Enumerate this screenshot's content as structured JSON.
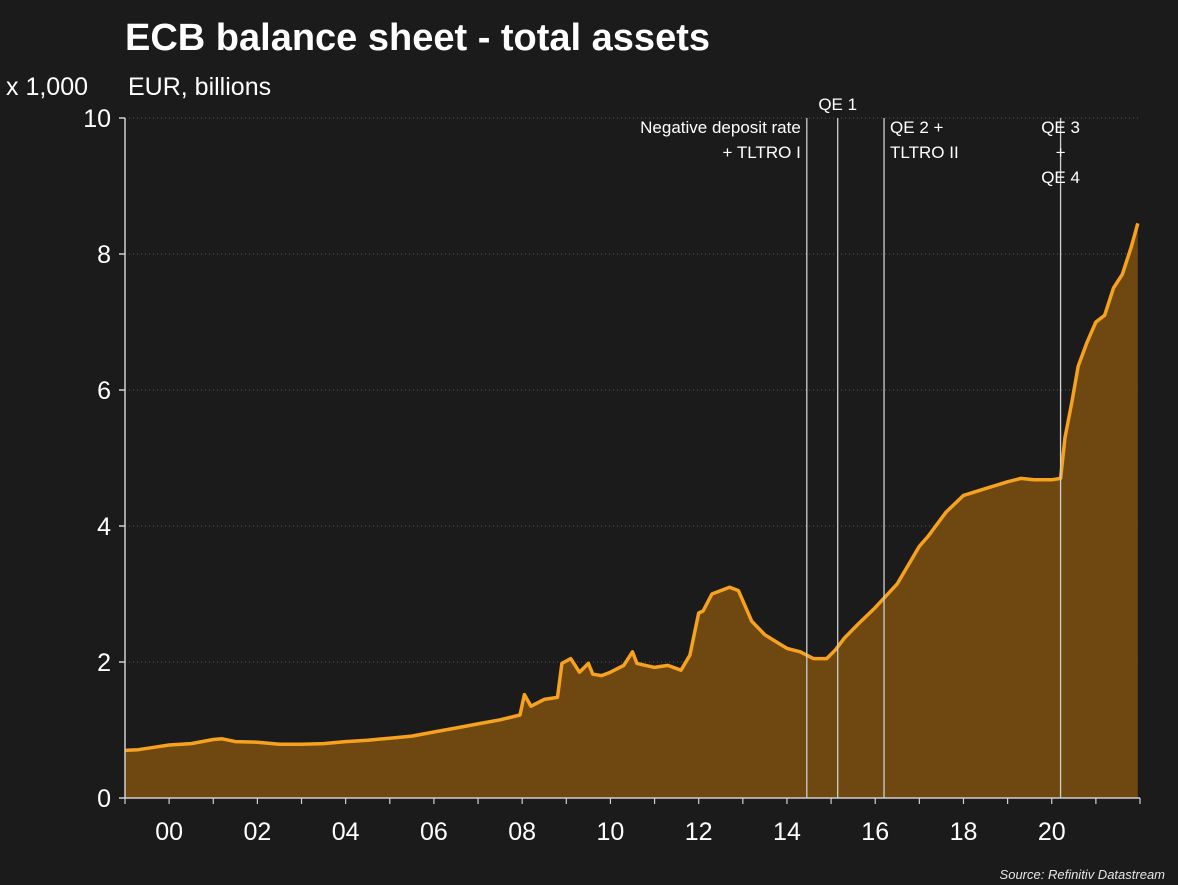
{
  "chart_data": {
    "type": "area",
    "title": "ECB balance sheet - total assets",
    "ylabel_multiplier": "x 1,000",
    "ylabel_units": "EUR, billions",
    "source": "Source: Refinitiv Datastream",
    "xlim": [
      1999.0,
      2022.0
    ],
    "ylim": [
      0,
      10
    ],
    "y_ticks": [
      0,
      2,
      4,
      6,
      8,
      10
    ],
    "y_tick_labels": [
      "0",
      "2",
      "4",
      "6",
      "8",
      "10"
    ],
    "x_ticks": [
      2000,
      2002,
      2004,
      2006,
      2008,
      2010,
      2012,
      2014,
      2016,
      2018,
      2020
    ],
    "x_tick_labels": [
      "00",
      "02",
      "04",
      "06",
      "08",
      "10",
      "12",
      "14",
      "16",
      "18",
      "20"
    ],
    "grid": "horizontal dotted",
    "colors": {
      "line": "#f6a21e",
      "fill": "#6f4710",
      "background": "#1b1b1b",
      "annotation_line": "#cfcfcf"
    },
    "series": [
      {
        "x": [
          1999.0,
          1999.3,
          1999.6,
          2000.0,
          2000.5,
          2001.0,
          2001.2,
          2001.5,
          2002.0,
          2002.5,
          2003.0,
          2003.5,
          2004.0,
          2004.5,
          2005.0,
          2005.5,
          2006.0,
          2006.5,
          2007.0,
          2007.5,
          2007.95,
          2008.05,
          2008.2,
          2008.5,
          2008.8,
          2008.9,
          2009.1,
          2009.3,
          2009.5,
          2009.6,
          2009.8,
          2010.0,
          2010.3,
          2010.5,
          2010.6,
          2010.8,
          2011.0,
          2011.3,
          2011.6,
          2011.8,
          2012.0,
          2012.1,
          2012.3,
          2012.5,
          2012.7,
          2012.9,
          2013.2,
          2013.5,
          2013.8,
          2014.0,
          2014.3,
          2014.6,
          2014.9,
          2015.1,
          2015.3,
          2015.6,
          2016.0,
          2016.5,
          2017.0,
          2017.2,
          2017.6,
          2018.0,
          2018.5,
          2019.0,
          2019.3,
          2019.6,
          2019.8,
          2020.0,
          2020.2,
          2020.3,
          2020.45,
          2020.6,
          2020.8,
          2021.0,
          2021.2,
          2021.4,
          2021.6,
          2021.8,
          2021.95
        ],
        "values": [
          0.7,
          0.71,
          0.74,
          0.78,
          0.8,
          0.86,
          0.87,
          0.83,
          0.82,
          0.79,
          0.79,
          0.8,
          0.83,
          0.85,
          0.88,
          0.91,
          0.97,
          1.03,
          1.09,
          1.15,
          1.22,
          1.52,
          1.35,
          1.45,
          1.48,
          1.98,
          2.05,
          1.85,
          1.98,
          1.82,
          1.8,
          1.85,
          1.95,
          2.15,
          1.98,
          1.95,
          1.92,
          1.95,
          1.88,
          2.1,
          2.72,
          2.75,
          3.0,
          3.05,
          3.1,
          3.05,
          2.6,
          2.4,
          2.28,
          2.2,
          2.15,
          2.05,
          2.05,
          2.18,
          2.35,
          2.55,
          2.8,
          3.15,
          3.7,
          3.85,
          4.2,
          4.45,
          4.55,
          4.65,
          4.7,
          4.68,
          4.68,
          4.68,
          4.7,
          5.3,
          5.8,
          6.35,
          6.7,
          7.0,
          7.1,
          7.5,
          7.7,
          8.1,
          8.45
        ]
      }
    ],
    "annotations": [
      {
        "x": 2014.45,
        "lines": [
          "Negative deposit rate",
          "+ TLTRO I"
        ],
        "align": "end"
      },
      {
        "x": 2015.15,
        "lines": [
          "QE 1"
        ],
        "align": "middle"
      },
      {
        "x": 2016.2,
        "lines": [
          "QE 2 +",
          "TLTRO II"
        ],
        "align": "start"
      },
      {
        "x": 2020.2,
        "lines": [
          "QE 3",
          "+",
          "QE 4"
        ],
        "align": "middle"
      }
    ]
  }
}
